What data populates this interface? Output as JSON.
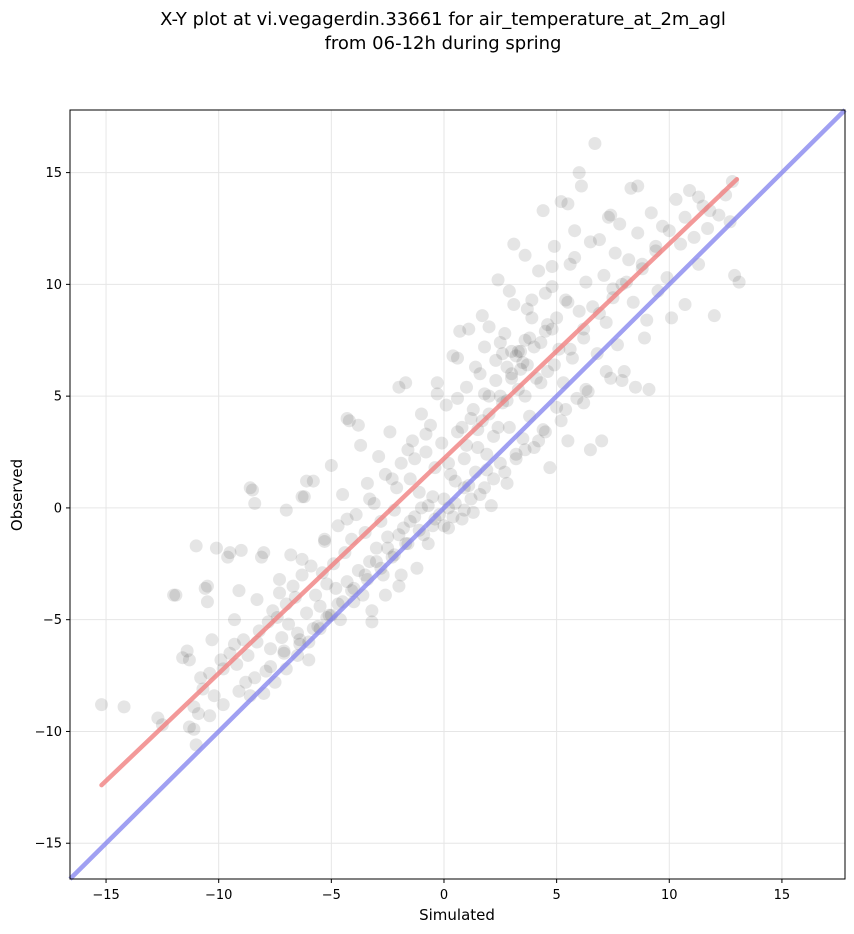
{
  "chart_data": {
    "type": "scatter",
    "title_line1": "X-Y plot at vi.vegagerdin.33661 for air_temperature_at_2m_agl",
    "title_line2": "from 06-12h during spring",
    "xlabel": "Simulated",
    "ylabel": "Observed",
    "xlim": [
      -16.6,
      17.8
    ],
    "ylim": [
      -16.6,
      17.8
    ],
    "xticks": [
      -15,
      -10,
      -5,
      0,
      5,
      10,
      15
    ],
    "yticks": [
      -15,
      -10,
      -5,
      0,
      5,
      10,
      15
    ],
    "xtick_labels": [
      "−15",
      "−10",
      "−5",
      "0",
      "5",
      "10",
      "15"
    ],
    "ytick_labels": [
      "−15",
      "−10",
      "−5",
      "0",
      "5",
      "10",
      "15"
    ],
    "grid": true,
    "point_color": "#000000",
    "fit_line": {
      "x": [
        -15.2,
        13.0
      ],
      "y": [
        -12.4,
        14.7
      ],
      "color": "#f08080"
    },
    "identity_line": {
      "x": [
        -16.6,
        17.8
      ],
      "y": [
        -16.6,
        17.8
      ],
      "color": "#8080ee"
    },
    "points": [
      [
        -15.2,
        -8.8
      ],
      [
        -14.2,
        -8.9
      ],
      [
        -12.7,
        -9.4
      ],
      [
        -12.5,
        -9.7
      ],
      [
        -11.9,
        -3.9
      ],
      [
        -11.6,
        -6.7
      ],
      [
        -11.4,
        -6.4
      ],
      [
        -11.3,
        -9.8
      ],
      [
        -11.1,
        -8.9
      ],
      [
        -11.0,
        -10.6
      ],
      [
        -10.9,
        -9.2
      ],
      [
        -10.8,
        -7.6
      ],
      [
        -10.7,
        -8.1
      ],
      [
        -10.6,
        -3.6
      ],
      [
        -10.5,
        -4.2
      ],
      [
        -10.4,
        -7.4
      ],
      [
        -10.2,
        -8.4
      ],
      [
        -10.1,
        -1.8
      ],
      [
        -9.9,
        -6.8
      ],
      [
        -9.8,
        -7.2
      ],
      [
        -9.6,
        -2.2
      ],
      [
        -9.5,
        -6.5
      ],
      [
        -9.3,
        -6.1
      ],
      [
        -9.2,
        -7.0
      ],
      [
        -9.1,
        -3.7
      ],
      [
        -9.0,
        -1.9
      ],
      [
        -8.9,
        -5.9
      ],
      [
        -8.8,
        -7.8
      ],
      [
        -8.7,
        -6.6
      ],
      [
        -8.6,
        -8.4
      ],
      [
        -8.5,
        0.8
      ],
      [
        -8.4,
        0.2
      ],
      [
        -8.3,
        -6.0
      ],
      [
        -8.2,
        -5.5
      ],
      [
        -8.1,
        -2.2
      ],
      [
        -8.0,
        -2.0
      ],
      [
        -7.9,
        -7.3
      ],
      [
        -7.8,
        -5.1
      ],
      [
        -7.7,
        -6.3
      ],
      [
        -7.6,
        -4.6
      ],
      [
        -7.4,
        -4.9
      ],
      [
        -7.3,
        -3.8
      ],
      [
        -7.2,
        -5.8
      ],
      [
        -7.1,
        -6.4
      ],
      [
        -7.0,
        -4.3
      ],
      [
        -6.9,
        -5.2
      ],
      [
        -6.8,
        -2.1
      ],
      [
        -6.7,
        -3.5
      ],
      [
        -6.6,
        -4.0
      ],
      [
        -6.5,
        -5.6
      ],
      [
        -6.4,
        -6.1
      ],
      [
        -6.3,
        -3.0
      ],
      [
        -6.2,
        0.5
      ],
      [
        -6.1,
        -4.7
      ],
      [
        -6.0,
        -6.8
      ],
      [
        -5.9,
        -2.6
      ],
      [
        -5.8,
        1.2
      ],
      [
        -5.7,
        -3.9
      ],
      [
        -5.6,
        -5.3
      ],
      [
        -5.5,
        -4.4
      ],
      [
        -5.4,
        -2.9
      ],
      [
        -5.3,
        -1.5
      ],
      [
        -5.2,
        -3.4
      ],
      [
        -5.1,
        -4.8
      ],
      [
        -5.0,
        1.9
      ],
      [
        -4.9,
        -2.5
      ],
      [
        -4.8,
        -3.6
      ],
      [
        -4.7,
        -0.8
      ],
      [
        -4.6,
        -5.0
      ],
      [
        -4.5,
        0.6
      ],
      [
        -4.4,
        -2.0
      ],
      [
        -4.3,
        -3.3
      ],
      [
        -4.2,
        3.9
      ],
      [
        -4.1,
        -1.4
      ],
      [
        -4.0,
        -4.2
      ],
      [
        -3.9,
        -0.3
      ],
      [
        -3.8,
        -2.8
      ],
      [
        -3.7,
        2.8
      ],
      [
        -3.6,
        -3.9
      ],
      [
        -3.5,
        -1.1
      ],
      [
        -3.4,
        1.1
      ],
      [
        -3.3,
        -2.4
      ],
      [
        -3.2,
        -5.1
      ],
      [
        -3.1,
        0.2
      ],
      [
        -3.0,
        -1.8
      ],
      [
        -2.9,
        2.3
      ],
      [
        -2.8,
        -0.6
      ],
      [
        -2.7,
        -3.0
      ],
      [
        -2.6,
        1.5
      ],
      [
        -2.5,
        -1.3
      ],
      [
        -2.4,
        3.4
      ],
      [
        -2.3,
        -2.2
      ],
      [
        -2.2,
        -0.1
      ],
      [
        -2.1,
        0.9
      ],
      [
        -2.0,
        -3.5
      ],
      [
        -1.9,
        2.0
      ],
      [
        -1.8,
        -0.9
      ],
      [
        -1.7,
        5.6
      ],
      [
        -1.6,
        -1.6
      ],
      [
        -1.5,
        1.3
      ],
      [
        -1.4,
        3.0
      ],
      [
        -1.3,
        -0.4
      ],
      [
        -1.2,
        -2.7
      ],
      [
        -1.1,
        0.7
      ],
      [
        -1.0,
        4.2
      ],
      [
        -0.9,
        -1.2
      ],
      [
        -0.8,
        2.5
      ],
      [
        -0.7,
        0.1
      ],
      [
        -0.6,
        3.7
      ],
      [
        -0.5,
        -0.8
      ],
      [
        -0.4,
        1.8
      ],
      [
        -0.3,
        5.1
      ],
      [
        -0.2,
        -0.3
      ],
      [
        -0.1,
        2.9
      ],
      [
        0.0,
        0.4
      ],
      [
        0.1,
        4.6
      ],
      [
        0.2,
        -0.9
      ],
      [
        0.3,
        1.5
      ],
      [
        0.4,
        6.8
      ],
      [
        0.5,
        0.2
      ],
      [
        0.6,
        3.4
      ],
      [
        0.7,
        7.9
      ],
      [
        0.8,
        -0.5
      ],
      [
        0.9,
        2.2
      ],
      [
        1.0,
        5.4
      ],
      [
        1.1,
        1.0
      ],
      [
        1.2,
        4.0
      ],
      [
        1.3,
        -0.2
      ],
      [
        1.4,
        6.3
      ],
      [
        1.5,
        2.7
      ],
      [
        1.6,
        0.6
      ],
      [
        1.7,
        3.9
      ],
      [
        1.8,
        7.2
      ],
      [
        1.9,
        1.7
      ],
      [
        2.0,
        5.0
      ],
      [
        2.1,
        0.1
      ],
      [
        2.2,
        3.2
      ],
      [
        2.3,
        6.6
      ],
      [
        2.4,
        10.2
      ],
      [
        2.5,
        2.0
      ],
      [
        2.6,
        4.7
      ],
      [
        2.7,
        7.8
      ],
      [
        2.8,
        1.1
      ],
      [
        2.9,
        3.6
      ],
      [
        3.0,
        6.0
      ],
      [
        3.1,
        9.1
      ],
      [
        3.2,
        2.4
      ],
      [
        3.3,
        5.3
      ],
      [
        3.4,
        7.0
      ],
      [
        3.5,
        3.1
      ],
      [
        3.6,
        11.3
      ],
      [
        3.7,
        6.4
      ],
      [
        3.8,
        4.1
      ],
      [
        3.9,
        8.5
      ],
      [
        4.0,
        2.7
      ],
      [
        4.1,
        5.8
      ],
      [
        4.2,
        10.6
      ],
      [
        4.3,
        7.4
      ],
      [
        4.4,
        3.5
      ],
      [
        4.5,
        9.6
      ],
      [
        4.6,
        6.1
      ],
      [
        4.7,
        1.8
      ],
      [
        4.8,
        8.0
      ],
      [
        4.9,
        11.7
      ],
      [
        5.0,
        4.5
      ],
      [
        5.1,
        7.1
      ],
      [
        5.2,
        13.7
      ],
      [
        5.3,
        5.6
      ],
      [
        5.4,
        9.3
      ],
      [
        5.5,
        3.0
      ],
      [
        5.6,
        10.9
      ],
      [
        5.7,
        6.7
      ],
      [
        5.8,
        12.4
      ],
      [
        5.9,
        4.9
      ],
      [
        6.0,
        8.8
      ],
      [
        6.1,
        14.4
      ],
      [
        6.2,
        7.6
      ],
      [
        6.3,
        10.1
      ],
      [
        6.4,
        5.2
      ],
      [
        6.5,
        11.9
      ],
      [
        6.6,
        9.0
      ],
      [
        6.7,
        16.3
      ],
      [
        6.8,
        6.9
      ],
      [
        6.9,
        12.0
      ],
      [
        7.0,
        3.0
      ],
      [
        7.1,
        10.4
      ],
      [
        7.2,
        8.3
      ],
      [
        7.3,
        13.0
      ],
      [
        7.4,
        5.8
      ],
      [
        7.5,
        9.8
      ],
      [
        7.6,
        11.4
      ],
      [
        7.7,
        7.3
      ],
      [
        7.8,
        12.7
      ],
      [
        7.9,
        10.0
      ],
      [
        8.0,
        6.1
      ],
      [
        8.2,
        11.1
      ],
      [
        8.3,
        14.3
      ],
      [
        8.4,
        9.2
      ],
      [
        8.5,
        5.4
      ],
      [
        8.6,
        12.3
      ],
      [
        8.8,
        10.7
      ],
      [
        9.0,
        8.4
      ],
      [
        9.1,
        5.3
      ],
      [
        9.2,
        13.2
      ],
      [
        9.4,
        11.5
      ],
      [
        9.5,
        9.7
      ],
      [
        9.7,
        12.6
      ],
      [
        9.9,
        10.3
      ],
      [
        10.1,
        8.5
      ],
      [
        10.3,
        13.8
      ],
      [
        10.5,
        11.8
      ],
      [
        10.7,
        9.1
      ],
      [
        10.9,
        14.2
      ],
      [
        11.1,
        12.1
      ],
      [
        11.3,
        10.9
      ],
      [
        11.5,
        13.5
      ],
      [
        11.7,
        12.5
      ],
      [
        12.0,
        8.6
      ],
      [
        12.2,
        13.1
      ],
      [
        12.5,
        14.0
      ],
      [
        12.7,
        12.8
      ],
      [
        12.9,
        10.4
      ],
      [
        13.1,
        10.1
      ],
      [
        6.0,
        15.0
      ],
      [
        5.5,
        13.6
      ],
      [
        7.4,
        13.1
      ],
      [
        8.6,
        14.4
      ],
      [
        12.8,
        14.6
      ],
      [
        11.8,
        13.3
      ],
      [
        3.1,
        11.8
      ],
      [
        4.4,
        13.3
      ],
      [
        2.0,
        8.1
      ],
      [
        1.1,
        8.0
      ],
      [
        -2.0,
        5.4
      ],
      [
        -4.3,
        4.0
      ],
      [
        -3.8,
        3.7
      ],
      [
        -6.3,
        0.5
      ],
      [
        -7.0,
        -0.1
      ],
      [
        -9.5,
        -2.0
      ],
      [
        -11.0,
        -1.7
      ],
      [
        -10.5,
        -3.5
      ],
      [
        -12.0,
        -3.9
      ],
      [
        -8.6,
        0.9
      ],
      [
        -6.1,
        1.2
      ],
      [
        0.2,
        2.0
      ],
      [
        0.5,
        1.2
      ],
      [
        1.0,
        2.8
      ],
      [
        1.5,
        3.5
      ],
      [
        2.0,
        4.2
      ],
      [
        2.5,
        5.0
      ],
      [
        3.0,
        5.8
      ],
      [
        3.5,
        6.5
      ],
      [
        -0.5,
        0.5
      ],
      [
        -1.0,
        0.0
      ],
      [
        -1.5,
        -0.6
      ],
      [
        -2.0,
        -1.2
      ],
      [
        -2.5,
        -1.8
      ],
      [
        -3.0,
        -2.4
      ],
      [
        -3.5,
        -3.0
      ],
      [
        -4.0,
        -3.6
      ],
      [
        -4.5,
        -4.2
      ],
      [
        -5.0,
        -4.8
      ],
      [
        -5.5,
        -5.4
      ],
      [
        -6.0,
        -6.0
      ],
      [
        -6.5,
        -6.6
      ],
      [
        -7.0,
        -7.2
      ],
      [
        -7.5,
        -7.8
      ],
      [
        -8.0,
        -8.3
      ],
      [
        4.0,
        7.2
      ],
      [
        4.5,
        7.9
      ],
      [
        5.0,
        8.5
      ],
      [
        5.5,
        9.2
      ],
      [
        0.8,
        3.6
      ],
      [
        1.3,
        4.4
      ],
      [
        1.8,
        5.1
      ],
      [
        2.3,
        5.7
      ],
      [
        2.8,
        6.3
      ],
      [
        3.3,
        7.0
      ],
      [
        3.8,
        7.6
      ],
      [
        0.4,
        -0.4
      ],
      [
        1.2,
        0.4
      ],
      [
        2.2,
        1.3
      ],
      [
        3.2,
        2.2
      ],
      [
        4.2,
        3.0
      ],
      [
        5.2,
        3.9
      ],
      [
        6.2,
        4.7
      ],
      [
        -1.3,
        2.2
      ],
      [
        -2.3,
        1.3
      ],
      [
        -3.3,
        0.4
      ],
      [
        -4.3,
        -0.5
      ],
      [
        -5.3,
        -1.4
      ],
      [
        -6.3,
        -2.3
      ],
      [
        -7.3,
        -3.2
      ],
      [
        -8.3,
        -4.1
      ],
      [
        -9.3,
        -5.0
      ],
      [
        -10.3,
        -5.9
      ],
      [
        -11.3,
        -6.8
      ],
      [
        2.6,
        6.9
      ],
      [
        3.6,
        7.5
      ],
      [
        4.6,
        8.2
      ],
      [
        3.0,
        7.0
      ],
      [
        3.2,
        6.8
      ],
      [
        3.4,
        6.2
      ],
      [
        3.6,
        5.0
      ],
      [
        2.8,
        4.8
      ],
      [
        2.4,
        3.6
      ],
      [
        1.9,
        2.4
      ],
      [
        1.4,
        1.6
      ],
      [
        0.9,
        0.9
      ],
      [
        0.2,
        0.0
      ],
      [
        -0.4,
        -0.5
      ],
      [
        -1.1,
        -1.0
      ],
      [
        -1.7,
        -1.6
      ],
      [
        -2.2,
        -2.1
      ],
      [
        -2.8,
        -2.7
      ],
      [
        -3.4,
        -3.2
      ],
      [
        -4.1,
        -3.7
      ],
      [
        -4.7,
        -4.3
      ],
      [
        -5.2,
        -4.9
      ],
      [
        -5.8,
        -5.4
      ],
      [
        -6.4,
        -5.9
      ],
      [
        -7.1,
        -6.5
      ],
      [
        -7.7,
        -7.1
      ],
      [
        -8.4,
        -7.6
      ],
      [
        -9.1,
        -8.2
      ],
      [
        -9.8,
        -8.8
      ],
      [
        -10.4,
        -9.3
      ],
      [
        -11.1,
        -9.9
      ],
      [
        4.3,
        5.6
      ],
      [
        4.9,
        6.4
      ],
      [
        5.6,
        7.1
      ],
      [
        6.2,
        8.0
      ],
      [
        6.9,
        8.7
      ],
      [
        7.5,
        9.4
      ],
      [
        8.1,
        10.1
      ],
      [
        8.8,
        10.9
      ],
      [
        9.4,
        11.7
      ],
      [
        10.0,
        12.4
      ],
      [
        10.7,
        13.0
      ],
      [
        11.3,
        13.9
      ],
      [
        -0.8,
        3.3
      ],
      [
        -1.6,
        2.6
      ],
      [
        0.6,
        4.9
      ],
      [
        1.6,
        6.0
      ],
      [
        2.5,
        7.4
      ],
      [
        3.7,
        8.9
      ],
      [
        4.8,
        9.9
      ],
      [
        -2.6,
        -3.9
      ],
      [
        -1.9,
        -3.0
      ],
      [
        -3.2,
        -4.6
      ],
      [
        -0.7,
        -1.6
      ],
      [
        0.0,
        -0.8
      ],
      [
        0.9,
        -0.1
      ],
      [
        1.8,
        0.9
      ],
      [
        2.7,
        1.6
      ],
      [
        3.6,
        2.6
      ],
      [
        4.5,
        3.4
      ],
      [
        5.4,
        4.4
      ],
      [
        6.3,
        5.3
      ],
      [
        7.2,
        6.1
      ],
      [
        3.9,
        9.3
      ],
      [
        2.9,
        9.7
      ],
      [
        4.8,
        10.8
      ],
      [
        5.8,
        11.2
      ],
      [
        1.7,
        8.6
      ],
      [
        0.6,
        6.7
      ],
      [
        -0.3,
        5.6
      ],
      [
        6.5,
        2.6
      ],
      [
        7.9,
        5.7
      ],
      [
        8.9,
        7.6
      ]
    ]
  }
}
